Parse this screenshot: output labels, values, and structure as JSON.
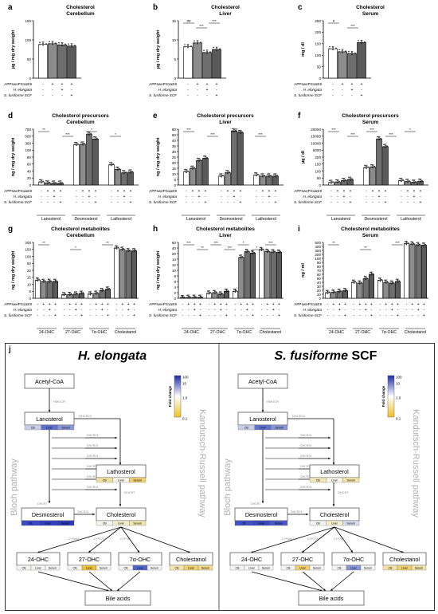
{
  "group_labels": [
    "APPswePS1ΔE9",
    "H. elongata",
    "S. fusiforme SCF"
  ],
  "group_signs": [
    [
      "-",
      "+",
      "+",
      "+"
    ],
    [
      "-",
      "-",
      "+",
      "-"
    ],
    [
      "-",
      "-",
      "-",
      "+"
    ]
  ],
  "chart_data": [
    {
      "id": "a",
      "type": "bar",
      "title": "Cholesterol",
      "subtitle": "Cerebellum",
      "ylabel": "µg / mg dry weight",
      "ylim": [
        0,
        150
      ],
      "yticks": [
        0,
        50,
        100,
        150
      ],
      "categories": [
        ""
      ],
      "series": [
        {
          "values": [
            [
              88,
              90,
              87,
              84
            ]
          ]
        }
      ],
      "sig": []
    },
    {
      "id": "b",
      "type": "bar",
      "title": "Cholesterol",
      "subtitle": "Liver",
      "ylabel": "µg / mg dry weight",
      "ylim": [
        0,
        15
      ],
      "yticks": [
        0,
        5,
        10,
        15
      ],
      "categories": [
        ""
      ],
      "series": [
        {
          "values": [
            [
              8.2,
              9.2,
              6.7,
              7.5
            ]
          ]
        }
      ],
      "sig": [
        "##",
        "***",
        "***"
      ]
    },
    {
      "id": "c",
      "type": "bar",
      "title": "Cholesterol",
      "subtitle": "Serum",
      "ylabel": "mg / dl",
      "ylim": [
        0,
        250
      ],
      "yticks": [
        0,
        50,
        100,
        150,
        200,
        250
      ],
      "categories": [
        ""
      ],
      "series": [
        {
          "values": [
            [
              128,
              115,
              107,
              155
            ]
          ]
        }
      ],
      "sig": [
        "#",
        "***"
      ]
    },
    {
      "id": "d",
      "type": "bar",
      "title": "Cholesterol precursors",
      "subtitle": "Cerebellum",
      "ylabel": "ng / mg dry weight",
      "ylim": [
        0,
        800
      ],
      "yticks": [
        0,
        20,
        40,
        60,
        80,
        100,
        300,
        500,
        700
      ],
      "categories": [
        "Lanosterol",
        "Desmosterol",
        "Lathosterol"
      ],
      "series": [
        {
          "values": [
            [
              9,
              6,
              5,
              5
            ],
            [
              260,
              270,
              560,
              420
            ],
            [
              58,
              45,
              35,
              37
            ]
          ]
        }
      ],
      "sig": [
        "**",
        "***",
        "*",
        "*"
      ]
    },
    {
      "id": "e",
      "type": "bar",
      "title": "Cholesterol precursors",
      "subtitle": "Liver",
      "ylabel": "ng / mg dry weight",
      "ylim": [
        0,
        80
      ],
      "yticks": [
        0,
        5,
        10,
        15,
        20,
        25,
        30,
        35,
        40,
        60,
        80
      ],
      "categories": [
        "Lanosterol",
        "Desmosterol",
        "Lathosterol"
      ],
      "series": [
        {
          "values": [
            [
              12,
              15,
              22,
              24
            ],
            [
              8,
              11,
              74,
              68
            ],
            [
              9,
              8,
              8,
              8
            ]
          ]
        }
      ],
      "sig": [
        "***",
        "***",
        "**",
        "***"
      ]
    },
    {
      "id": "f",
      "type": "bar",
      "title": "Cholesterol precursors",
      "subtitle": "Serum",
      "ylabel": "µg / dl",
      "ylim": [
        0,
        20000
      ],
      "yticks": [
        0,
        50,
        100,
        150,
        200,
        5000,
        10000,
        15000,
        20000
      ],
      "categories": [
        "Lanosterol",
        "Desmosterol",
        "Lathosterol"
      ],
      "series": [
        {
          "values": [
            [
              18,
              22,
              32,
              40
            ],
            [
              125,
              130,
              13000,
              7500
            ],
            [
              32,
              25,
              20,
              27
            ]
          ]
        }
      ],
      "sig": [
        "***",
        "***",
        "***",
        "***",
        "*"
      ]
    },
    {
      "id": "g",
      "type": "bar",
      "title": "Cholesterol metabolites",
      "subtitle": "Cerebellum",
      "ylabel": "ng / mg dry weight",
      "ylim": [
        0,
        200
      ],
      "yticks": [
        0,
        5,
        10,
        15,
        20,
        50,
        100,
        150,
        200
      ],
      "categories": [
        "24-OHC",
        "27-OHC",
        "7α-OHC",
        "Cholestanol"
      ],
      "series": [
        {
          "values": [
            [
              13,
              12,
              12,
              12
            ],
            [
              2.5,
              2.7,
              3,
              3.5
            ],
            [
              3,
              3.5,
              5.5,
              6.5
            ],
            [
              160,
              150,
              140,
              140
            ]
          ]
        }
      ],
      "sig": [
        "**",
        "*",
        "**"
      ]
    },
    {
      "id": "h",
      "type": "bar",
      "title": "Cholesterol metabolites",
      "subtitle": "Liver",
      "ylabel": "ng / mg dry weight",
      "ylim": [
        0,
        60
      ],
      "yticks": [
        0,
        2,
        4,
        6,
        8,
        10,
        12,
        14,
        20,
        40,
        60
      ],
      "categories": [
        "24-OHC",
        "27-OHC",
        "7α-OHC",
        "Cholestanol"
      ],
      "series": [
        {
          "values": [
            [
              0.2,
              0.3,
              0.3,
              0.3
            ],
            [
              1.8,
              2,
              1.5,
              2.5
            ],
            [
              2.5,
              16,
              27,
              22
            ],
            [
              34,
              28,
              26,
              25
            ]
          ]
        }
      ],
      "sig": [
        "***",
        "**",
        "***",
        "***",
        "*",
        "*",
        "***"
      ]
    },
    {
      "id": "i",
      "type": "bar",
      "title": "Cholesterol metabolites",
      "subtitle": "Serum",
      "ylabel": "ng / ml",
      "ylim": [
        0,
        500
      ],
      "yticks": [
        0,
        10,
        20,
        30,
        40,
        50,
        60,
        70,
        80,
        90,
        100,
        200,
        300,
        400,
        500
      ],
      "categories": [
        "24-OHC",
        "27-OHC",
        "7α-OHC",
        "Cholestanol"
      ],
      "series": [
        {
          "values": [
            [
              14,
              15,
              17,
              19
            ],
            [
              40,
              38,
              49,
              60
            ],
            [
              45,
              40,
              38,
              42
            ],
            [
              470,
              460,
              440,
              430
            ]
          ]
        }
      ],
      "sig": [
        "**",
        "**",
        "***"
      ]
    }
  ],
  "pathway_letter": "j",
  "pathways": [
    {
      "title_italic": "H. elongata",
      "title_plain": "",
      "nodes": {
        "acetyl": "Acetyl-CoA",
        "lanosterol": "Lanosterol",
        "lathosterol": "Lathosterol",
        "desmosterol": "Desmosterol",
        "cholesterol": "Cholesterol",
        "oh24": "24-OHC",
        "oh27": "27-OHC",
        "oh7a": "7α-OHC",
        "cholestanol": "Cholestanol",
        "bile": "Bile acids"
      },
      "enzymes": {
        "hmgcr": "HMGCR",
        "dhcr24": "DHCR24",
        "dhcr7": "DHCR7",
        "cyp46a1": "CYP46A1",
        "cyp27a1": "CYP27A1",
        "cyp7a1": "CYP7A1"
      },
      "side_left": "Bloch pathway",
      "side_right": "Kandutsch-Russell pathway",
      "tissues": [
        "CB",
        "Liver",
        "Serum"
      ],
      "fold": {
        "lanosterol": [
          "#c8cde8",
          "#6070d0",
          "#8a96d8"
        ],
        "lathosterol": [
          "#f2e0a0",
          "#f8f4e8",
          "#f0d070"
        ],
        "desmosterol": [
          "#3848c8",
          "#3040c0",
          "#2a3ab8"
        ],
        "cholesterol": [
          "#f4f2ec",
          "#f4eecc",
          "#f2e6b0"
        ],
        "oh24": [
          "#f6f4ee",
          "#f6f6f6",
          "#f6f6f6"
        ],
        "oh27": [
          "#f6f4ee",
          "#ecc23a",
          "#f6f6f6"
        ],
        "oh7a": [
          "#f6f4ee",
          "#5464cc",
          "#f6f6f6"
        ],
        "cholestanol": [
          "#f6e6b0",
          "#f0d070",
          "#f2dc90"
        ]
      },
      "legend": {
        "title": "Fold change",
        "ticks": [
          "100",
          "10",
          "1.0",
          "0.1"
        ]
      }
    },
    {
      "title_italic": "S. fusiforme",
      "title_plain": " SCF",
      "nodes": {
        "acetyl": "Acetyl-CoA",
        "lanosterol": "Lanosterol",
        "lathosterol": "Lathosterol",
        "desmosterol": "Desmosterol",
        "cholesterol": "Cholesterol",
        "oh24": "24-OHC",
        "oh27": "27-OHC",
        "oh7a": "7α-OHC",
        "cholestanol": "Cholestanol",
        "bile": "Bile acids"
      },
      "enzymes": {
        "hmgcr": "HMGCR",
        "dhcr24": "DHCR24",
        "dhcr7": "DHCR7",
        "cyp46a1": "CYP46A1",
        "cyp27a1": "CYP27A1",
        "cyp7a1": "CYP7A1"
      },
      "side_left": "Bloch pathway",
      "side_right": "Kandutsch-Russell pathway",
      "tissues": [
        "CB",
        "Liver",
        "Serum"
      ],
      "fold": {
        "lanosterol": [
          "#c8cde8",
          "#6070d0",
          "#8a96d8"
        ],
        "lathosterol": [
          "#f2e6b8",
          "#f8f4e8",
          "#f4e4a8"
        ],
        "desmosterol": [
          "#4050c8",
          "#3848c0",
          "#4858c8"
        ],
        "cholesterol": [
          "#f4f2ec",
          "#f4eecc",
          "#d8dcf0"
        ],
        "oh24": [
          "#f6f4ee",
          "#f6f6f6",
          "#f6f6f6"
        ],
        "oh27": [
          "#f6f4ee",
          "#f0d070",
          "#f6f6f6"
        ],
        "oh7a": [
          "#f6f4ee",
          "#8a96d8",
          "#f6f6f6"
        ],
        "cholestanol": [
          "#f4e2a8",
          "#f0d070",
          "#f4e4a8"
        ]
      },
      "legend": {
        "title": "Fold change",
        "ticks": [
          "100",
          "10",
          "1.0",
          "0.1"
        ]
      }
    }
  ]
}
